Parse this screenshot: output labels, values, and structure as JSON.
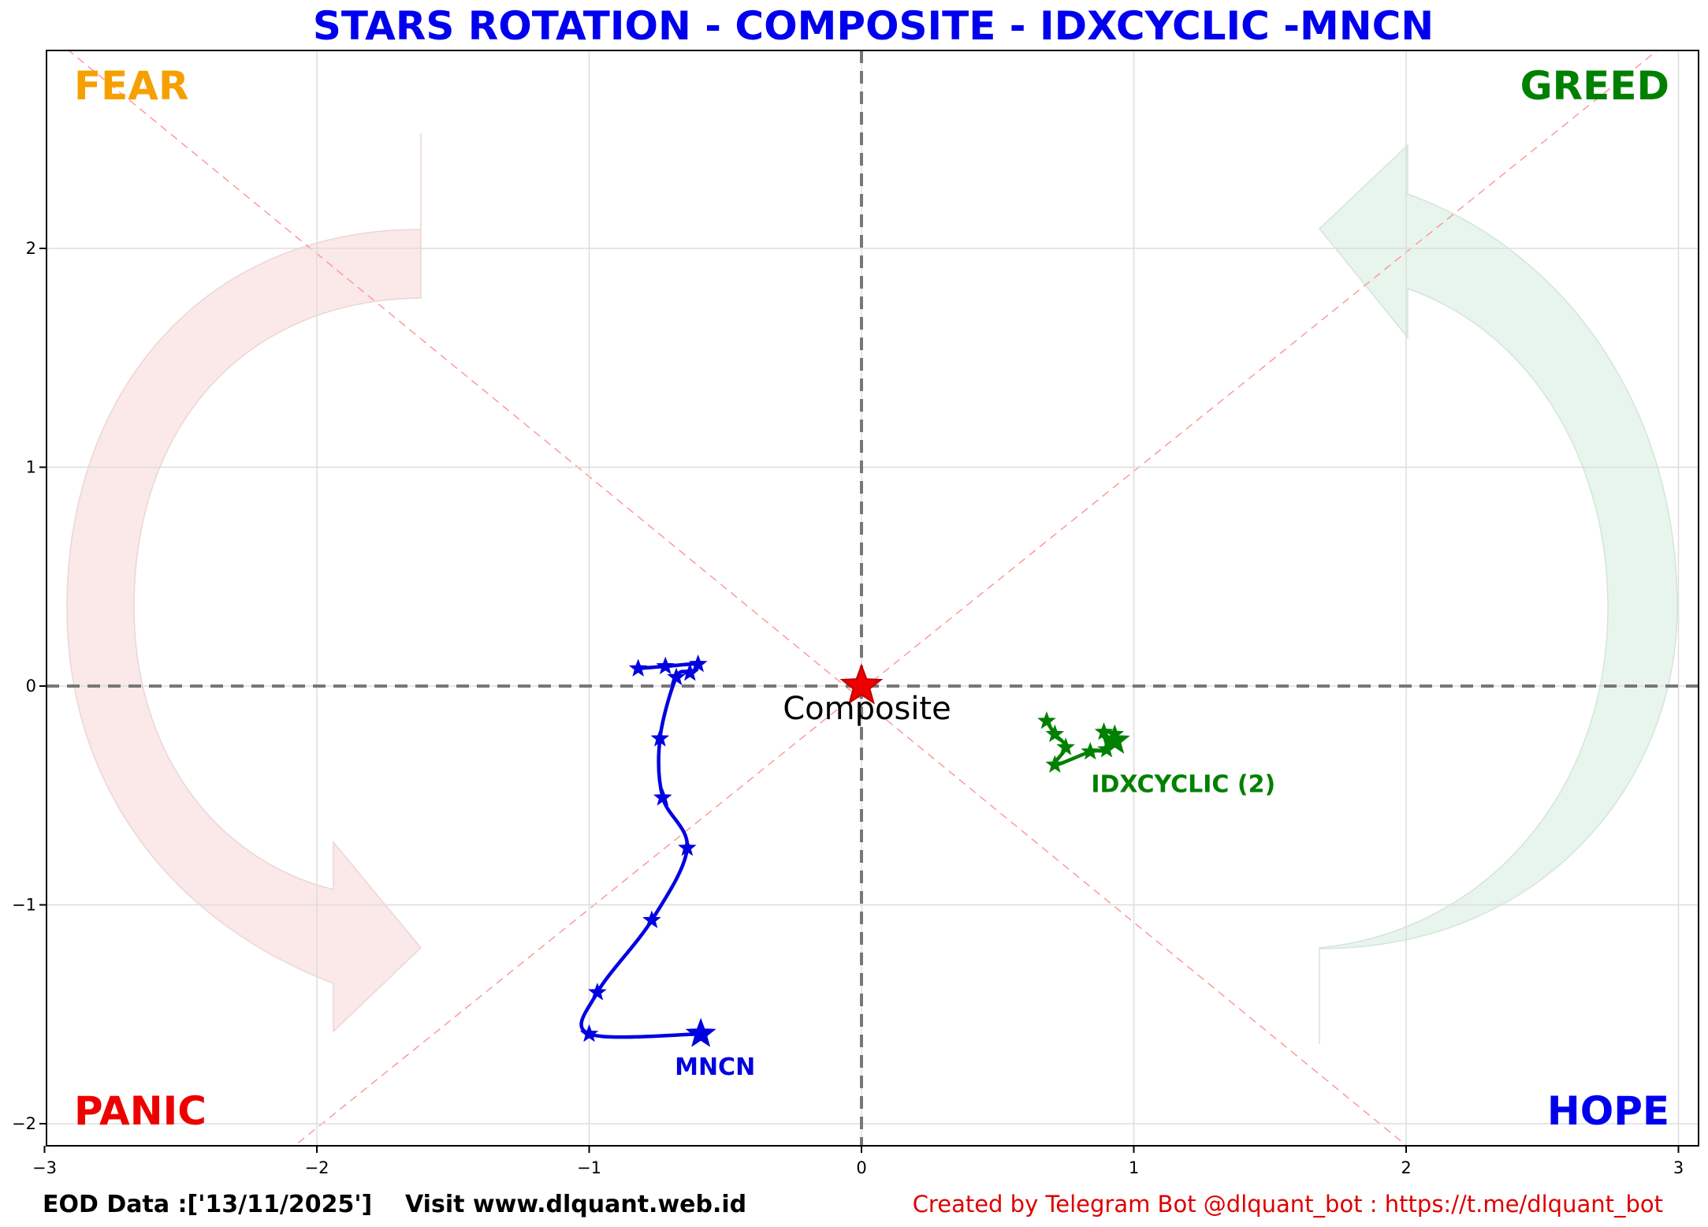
{
  "colors": {
    "title": "#0000ee",
    "fear": "#f5a000",
    "greed": "#008000",
    "panic": "#ee0000",
    "hope": "#0000ee",
    "stock": "#0000e0",
    "index": "#008000",
    "composite_star": "#ee0000",
    "footer_right": "#dd0000",
    "diag": "#ff9999",
    "left_arrow_fill": "#fbe4e4",
    "right_arrow_fill": "#e6f4ea"
  },
  "footer": {
    "left": "EOD Data :['13/11/2025']    Visit www.dlquant.web.id",
    "right": "Created by Telegram Bot @dlquant_bot : https://t.me/dlquant_bot"
  },
  "chart_data": {
    "type": "scatter",
    "title": "STARS ROTATION - COMPOSITE - IDXCYCLIC -MNCN",
    "xlabel": "",
    "ylabel": "",
    "xlim": [
      -3,
      3.07
    ],
    "ylim": [
      -2.1,
      2.9
    ],
    "x_ticks": [
      -3,
      -2,
      -1,
      0,
      1,
      2,
      3
    ],
    "x_tick_labels": [
      "−3",
      "−2",
      "−1",
      "0",
      "1",
      "2",
      "3"
    ],
    "y_ticks": [
      -2,
      -1,
      0,
      1,
      2
    ],
    "y_tick_labels": [
      "−2",
      "−1",
      "0",
      "1",
      "2"
    ],
    "grid": true,
    "quadrants": {
      "top_left": "FEAR",
      "top_right": "GREED",
      "bottom_left": "PANIC",
      "bottom_right": "HOPE"
    },
    "center": {
      "name": "Composite",
      "x": 0,
      "y": 0
    },
    "series": [
      {
        "name": "MNCN",
        "points": [
          [
            -0.82,
            0.08
          ],
          [
            -0.72,
            0.09
          ],
          [
            -0.6,
            0.1
          ],
          [
            -0.63,
            0.06
          ],
          [
            -0.68,
            0.04
          ],
          [
            -0.74,
            -0.24
          ],
          [
            -0.73,
            -0.51
          ],
          [
            -0.64,
            -0.74
          ],
          [
            -0.77,
            -1.07
          ],
          [
            -0.97,
            -1.4
          ],
          [
            -1.0,
            -1.59
          ],
          [
            -0.59,
            -1.59
          ]
        ]
      },
      {
        "name": "IDXCYCLIC (2)",
        "points": [
          [
            0.68,
            -0.16
          ],
          [
            0.71,
            -0.22
          ],
          [
            0.75,
            -0.28
          ],
          [
            0.71,
            -0.36
          ],
          [
            0.84,
            -0.3
          ],
          [
            0.9,
            -0.29
          ],
          [
            0.89,
            -0.21
          ],
          [
            0.93,
            -0.22
          ],
          [
            0.93,
            -0.25
          ]
        ]
      }
    ]
  }
}
